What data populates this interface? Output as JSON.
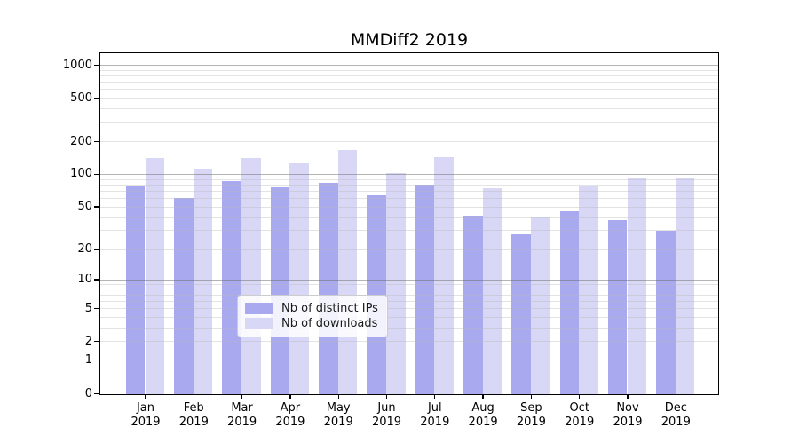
{
  "chart_data": {
    "type": "bar",
    "title": "MMDiff2 2019",
    "year": "2019",
    "months": [
      "Jan",
      "Feb",
      "Mar",
      "Apr",
      "May",
      "Jun",
      "Jul",
      "Aug",
      "Sep",
      "Oct",
      "Nov",
      "Dec"
    ],
    "series": [
      {
        "name": "Nb of distinct IPs",
        "color": "#a9a9ef",
        "values": [
          78,
          61,
          87,
          76,
          84,
          65,
          81,
          42,
          28,
          46,
          38,
          30
        ]
      },
      {
        "name": "Nb of downloads",
        "color": "#d8d8f6",
        "values": [
          144,
          114,
          142,
          127,
          170,
          104,
          145,
          75,
          41,
          78,
          95,
          94
        ]
      }
    ],
    "y_axis": {
      "scale": "log1p",
      "tick_labels": [
        "1000",
        "500",
        "200",
        "100",
        "50",
        "20",
        "10",
        "5",
        "2",
        "1",
        "0"
      ],
      "tick_values": [
        1000,
        500,
        200,
        100,
        50,
        20,
        10,
        5,
        2,
        1,
        0
      ],
      "major_gridlines": [
        1,
        10,
        100,
        1000
      ],
      "minor_gridlines": [
        2,
        3,
        4,
        5,
        6,
        7,
        8,
        9,
        20,
        30,
        40,
        50,
        60,
        70,
        80,
        90,
        200,
        300,
        400,
        500,
        600,
        700,
        800,
        900
      ],
      "range_top": 1300
    },
    "legend": {
      "position": "lower-center"
    },
    "grid": true
  },
  "colors": {
    "axis": "#000000",
    "text": "#000000",
    "grid_major": "#b0b0b0",
    "grid_minor": "#e6e6e6",
    "legend_border": "#cccccc",
    "legend_background": "rgba(255,255,255,0.85)"
  }
}
